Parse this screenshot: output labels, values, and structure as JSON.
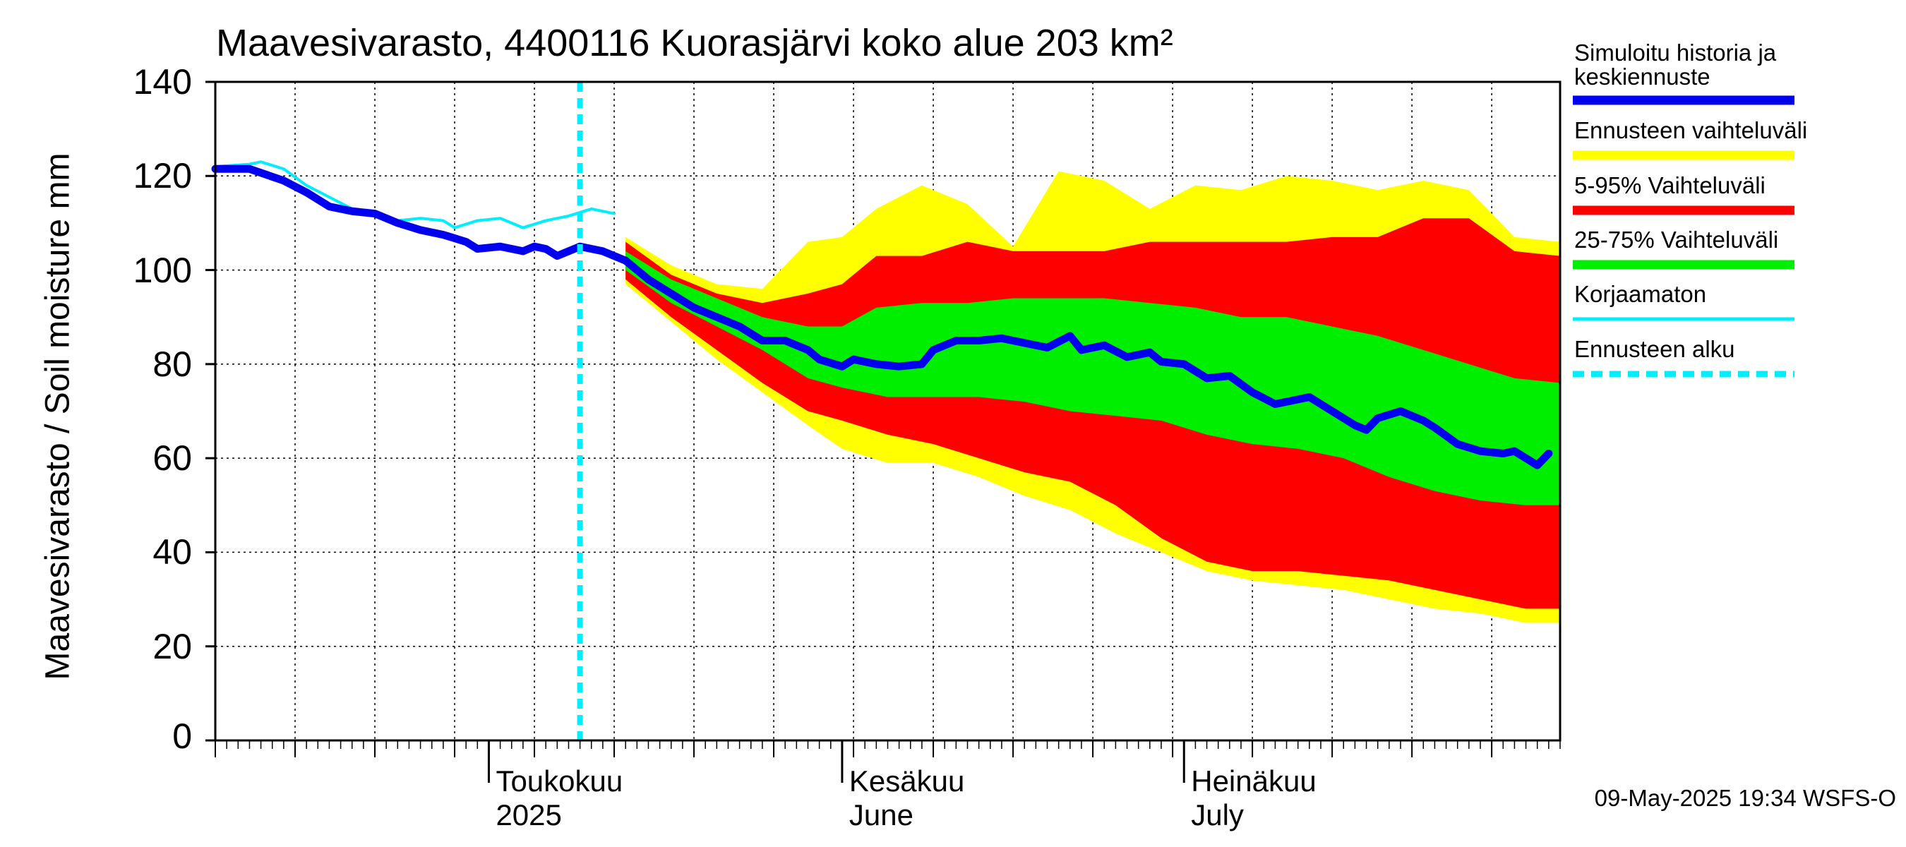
{
  "chart_data": {
    "type": "area",
    "title": "Maavesivarasto, 4400116 Kuorasjärvi koko alue 203 km²",
    "ylabel": "Maavesivarasto / Soil moisture   mm",
    "ylim": [
      0,
      140
    ],
    "yticks": [
      {
        "label": "0",
        "value": 0
      },
      {
        "label": "20",
        "value": 20
      },
      {
        "label": "40",
        "value": 40
      },
      {
        "label": "60",
        "value": 60
      },
      {
        "label": "80",
        "value": 80
      },
      {
        "label": "100",
        "value": 100
      },
      {
        "label": "120",
        "value": 120
      },
      {
        "label": "140",
        "value": 140
      }
    ],
    "xlim": [
      "2025-04-07",
      "2025-08-03"
    ],
    "x_month_labels": [
      {
        "line1": "Toukokuu",
        "line2": "2025",
        "date": "2025-05-01"
      },
      {
        "line1": "Kesäkuu",
        "line2": "June",
        "date": "2025-06-01"
      },
      {
        "line1": "Heinäkuu",
        "line2": "July",
        "date": "2025-07-01"
      }
    ],
    "grid": true,
    "forecast_start": "2025-05-09",
    "legend": [
      {
        "label": "Simuloitu historia ja\nkeskiennuste",
        "color": "#0000ee",
        "style": "solid"
      },
      {
        "label": "Ennusteen vaihteluväli",
        "color": "#ffff00",
        "style": "solid"
      },
      {
        "label": "5-95% Vaihteluväli",
        "color": "#ff0000",
        "style": "solid"
      },
      {
        "label": "25-75% Vaihteluväli",
        "color": "#00ee00",
        "style": "solid"
      },
      {
        "label": "Korjaamaton",
        "color": "#00eeff",
        "style": "solid"
      },
      {
        "label": "Ennusteen alku",
        "color": "#00eeff",
        "style": "dashed"
      }
    ],
    "colors": {
      "range": "#ffff00",
      "p5_95": "#ff0000",
      "p25_75": "#00ee00",
      "mean": "#0000ee",
      "uncorrected": "#00eeff",
      "forecast_start": "#00eeff"
    },
    "series": {
      "history": [
        [
          "2025-04-07",
          121.5
        ],
        [
          "2025-04-10",
          121.5
        ],
        [
          "2025-04-13",
          119
        ],
        [
          "2025-04-15",
          116.5
        ],
        [
          "2025-04-17",
          113.5
        ],
        [
          "2025-04-19",
          112.5
        ],
        [
          "2025-04-21",
          112
        ],
        [
          "2025-04-23",
          110
        ],
        [
          "2025-04-25",
          108.5
        ],
        [
          "2025-04-27",
          107.5
        ],
        [
          "2025-04-29",
          106
        ],
        [
          "2025-04-30",
          104.5
        ],
        [
          "2025-05-02",
          105
        ],
        [
          "2025-05-04",
          104
        ],
        [
          "2025-05-05",
          105
        ],
        [
          "2025-05-06",
          104.5
        ],
        [
          "2025-05-07",
          103
        ],
        [
          "2025-05-09",
          105
        ],
        [
          "2025-05-11",
          104
        ],
        [
          "2025-05-13",
          102
        ]
      ],
      "uncorrected": [
        [
          "2025-04-07",
          122
        ],
        [
          "2025-04-10",
          122.5
        ],
        [
          "2025-04-11",
          123
        ],
        [
          "2025-04-13",
          121.5
        ],
        [
          "2025-04-15",
          118
        ],
        [
          "2025-04-17",
          115.5
        ],
        [
          "2025-04-19",
          113
        ],
        [
          "2025-04-21",
          111.5
        ],
        [
          "2025-04-23",
          110.5
        ],
        [
          "2025-04-25",
          111
        ],
        [
          "2025-04-27",
          110.5
        ],
        [
          "2025-04-28",
          109
        ],
        [
          "2025-04-30",
          110.5
        ],
        [
          "2025-05-02",
          111
        ],
        [
          "2025-05-04",
          109
        ],
        [
          "2025-05-06",
          110.5
        ],
        [
          "2025-05-08",
          111.5
        ],
        [
          "2025-05-10",
          113
        ],
        [
          "2025-05-12",
          112
        ]
      ],
      "mean": [
        [
          "2025-05-13",
          102
        ],
        [
          "2025-05-15",
          98
        ],
        [
          "2025-05-17",
          95
        ],
        [
          "2025-05-19",
          92
        ],
        [
          "2025-05-21",
          90
        ],
        [
          "2025-05-23",
          88
        ],
        [
          "2025-05-25",
          85
        ],
        [
          "2025-05-27",
          85
        ],
        [
          "2025-05-29",
          83
        ],
        [
          "2025-05-30",
          81
        ],
        [
          "2025-06-01",
          79.5
        ],
        [
          "2025-06-02",
          81
        ],
        [
          "2025-06-04",
          80
        ],
        [
          "2025-06-06",
          79.5
        ],
        [
          "2025-06-08",
          80
        ],
        [
          "2025-06-09",
          83
        ],
        [
          "2025-06-11",
          85
        ],
        [
          "2025-06-13",
          85
        ],
        [
          "2025-06-15",
          85.5
        ],
        [
          "2025-06-17",
          84.5
        ],
        [
          "2025-06-19",
          83.5
        ],
        [
          "2025-06-21",
          86
        ],
        [
          "2025-06-22",
          83
        ],
        [
          "2025-06-24",
          84
        ],
        [
          "2025-06-26",
          81.5
        ],
        [
          "2025-06-28",
          82.5
        ],
        [
          "2025-06-29",
          80.5
        ],
        [
          "2025-07-01",
          80
        ],
        [
          "2025-07-03",
          77
        ],
        [
          "2025-07-05",
          77.5
        ],
        [
          "2025-07-07",
          74
        ],
        [
          "2025-07-09",
          71.5
        ],
        [
          "2025-07-11",
          72.5
        ],
        [
          "2025-07-12",
          73
        ],
        [
          "2025-07-14",
          70
        ],
        [
          "2025-07-16",
          67
        ],
        [
          "2025-07-17",
          66
        ],
        [
          "2025-07-18",
          68.5
        ],
        [
          "2025-07-20",
          70
        ],
        [
          "2025-07-22",
          68
        ],
        [
          "2025-07-23",
          66.5
        ],
        [
          "2025-07-25",
          63
        ],
        [
          "2025-07-27",
          61.5
        ],
        [
          "2025-07-29",
          61
        ],
        [
          "2025-07-30",
          61.5
        ],
        [
          "2025-07-31",
          60
        ],
        [
          "2025-08-01",
          58.5
        ],
        [
          "2025-08-02",
          61
        ]
      ],
      "p25_75": {
        "upper": [
          [
            "2025-05-13",
            104
          ],
          [
            "2025-05-17",
            98
          ],
          [
            "2025-05-21",
            94
          ],
          [
            "2025-05-25",
            90
          ],
          [
            "2025-05-29",
            88
          ],
          [
            "2025-06-01",
            88
          ],
          [
            "2025-06-04",
            92
          ],
          [
            "2025-06-08",
            93
          ],
          [
            "2025-06-12",
            93
          ],
          [
            "2025-06-16",
            94
          ],
          [
            "2025-06-20",
            94
          ],
          [
            "2025-06-24",
            94
          ],
          [
            "2025-06-28",
            93
          ],
          [
            "2025-07-02",
            92
          ],
          [
            "2025-07-06",
            90
          ],
          [
            "2025-07-10",
            90
          ],
          [
            "2025-07-14",
            88
          ],
          [
            "2025-07-18",
            86
          ],
          [
            "2025-07-22",
            83
          ],
          [
            "2025-07-26",
            80
          ],
          [
            "2025-07-30",
            77
          ],
          [
            "2025-08-03",
            76
          ]
        ],
        "lower": [
          [
            "2025-05-13",
            100
          ],
          [
            "2025-05-17",
            93
          ],
          [
            "2025-05-21",
            88
          ],
          [
            "2025-05-25",
            83
          ],
          [
            "2025-05-29",
            77
          ],
          [
            "2025-06-01",
            75
          ],
          [
            "2025-06-05",
            73
          ],
          [
            "2025-06-09",
            73
          ],
          [
            "2025-06-13",
            73
          ],
          [
            "2025-06-17",
            72
          ],
          [
            "2025-06-21",
            70
          ],
          [
            "2025-06-25",
            69
          ],
          [
            "2025-06-29",
            68
          ],
          [
            "2025-07-03",
            65
          ],
          [
            "2025-07-07",
            63
          ],
          [
            "2025-07-11",
            62
          ],
          [
            "2025-07-15",
            60
          ],
          [
            "2025-07-19",
            56
          ],
          [
            "2025-07-23",
            53
          ],
          [
            "2025-07-27",
            51
          ],
          [
            "2025-07-31",
            50
          ],
          [
            "2025-08-03",
            50
          ]
        ]
      },
      "p5_95": {
        "upper": [
          [
            "2025-05-13",
            106
          ],
          [
            "2025-05-17",
            99
          ],
          [
            "2025-05-21",
            95
          ],
          [
            "2025-05-25",
            93
          ],
          [
            "2025-05-29",
            95
          ],
          [
            "2025-06-01",
            97
          ],
          [
            "2025-06-04",
            103
          ],
          [
            "2025-06-08",
            103
          ],
          [
            "2025-06-12",
            106
          ],
          [
            "2025-06-16",
            104
          ],
          [
            "2025-06-20",
            104
          ],
          [
            "2025-06-24",
            104
          ],
          [
            "2025-06-28",
            106
          ],
          [
            "2025-07-02",
            106
          ],
          [
            "2025-07-06",
            106
          ],
          [
            "2025-07-10",
            106
          ],
          [
            "2025-07-14",
            107
          ],
          [
            "2025-07-18",
            107
          ],
          [
            "2025-07-22",
            111
          ],
          [
            "2025-07-26",
            111
          ],
          [
            "2025-07-30",
            104
          ],
          [
            "2025-08-03",
            103
          ]
        ],
        "lower": [
          [
            "2025-05-13",
            98
          ],
          [
            "2025-05-17",
            90
          ],
          [
            "2025-05-21",
            83
          ],
          [
            "2025-05-25",
            76
          ],
          [
            "2025-05-29",
            70
          ],
          [
            "2025-06-01",
            68
          ],
          [
            "2025-06-05",
            65
          ],
          [
            "2025-06-09",
            63
          ],
          [
            "2025-06-13",
            60
          ],
          [
            "2025-06-17",
            57
          ],
          [
            "2025-06-21",
            55
          ],
          [
            "2025-06-25",
            50
          ],
          [
            "2025-06-29",
            43
          ],
          [
            "2025-07-03",
            38
          ],
          [
            "2025-07-07",
            36
          ],
          [
            "2025-07-11",
            36
          ],
          [
            "2025-07-15",
            35
          ],
          [
            "2025-07-19",
            34
          ],
          [
            "2025-07-23",
            32
          ],
          [
            "2025-07-27",
            30
          ],
          [
            "2025-07-31",
            28
          ],
          [
            "2025-08-03",
            28
          ]
        ]
      },
      "range": {
        "upper": [
          [
            "2025-05-13",
            107
          ],
          [
            "2025-05-17",
            101
          ],
          [
            "2025-05-21",
            97
          ],
          [
            "2025-05-25",
            96
          ],
          [
            "2025-05-29",
            106
          ],
          [
            "2025-06-01",
            107
          ],
          [
            "2025-06-04",
            113
          ],
          [
            "2025-06-08",
            118
          ],
          [
            "2025-06-12",
            114
          ],
          [
            "2025-06-16",
            105
          ],
          [
            "2025-06-20",
            121
          ],
          [
            "2025-06-24",
            119
          ],
          [
            "2025-06-28",
            113
          ],
          [
            "2025-07-02",
            118
          ],
          [
            "2025-07-06",
            117
          ],
          [
            "2025-07-10",
            120
          ],
          [
            "2025-07-14",
            119
          ],
          [
            "2025-07-18",
            117
          ],
          [
            "2025-07-22",
            119
          ],
          [
            "2025-07-26",
            117
          ],
          [
            "2025-07-30",
            107
          ],
          [
            "2025-08-03",
            106
          ]
        ],
        "lower": [
          [
            "2025-05-13",
            97
          ],
          [
            "2025-05-17",
            89
          ],
          [
            "2025-05-21",
            81
          ],
          [
            "2025-05-25",
            74
          ],
          [
            "2025-05-29",
            67
          ],
          [
            "2025-06-01",
            62
          ],
          [
            "2025-06-05",
            59
          ],
          [
            "2025-06-09",
            59
          ],
          [
            "2025-06-13",
            56
          ],
          [
            "2025-06-17",
            52
          ],
          [
            "2025-06-21",
            49
          ],
          [
            "2025-06-25",
            44
          ],
          [
            "2025-06-29",
            40
          ],
          [
            "2025-07-03",
            36
          ],
          [
            "2025-07-07",
            34
          ],
          [
            "2025-07-11",
            33
          ],
          [
            "2025-07-15",
            32
          ],
          [
            "2025-07-19",
            30
          ],
          [
            "2025-07-23",
            28
          ],
          [
            "2025-07-27",
            27
          ],
          [
            "2025-07-31",
            25
          ],
          [
            "2025-08-03",
            25
          ]
        ]
      }
    }
  },
  "footer": "09-May-2025 19:34 WSFS-O"
}
